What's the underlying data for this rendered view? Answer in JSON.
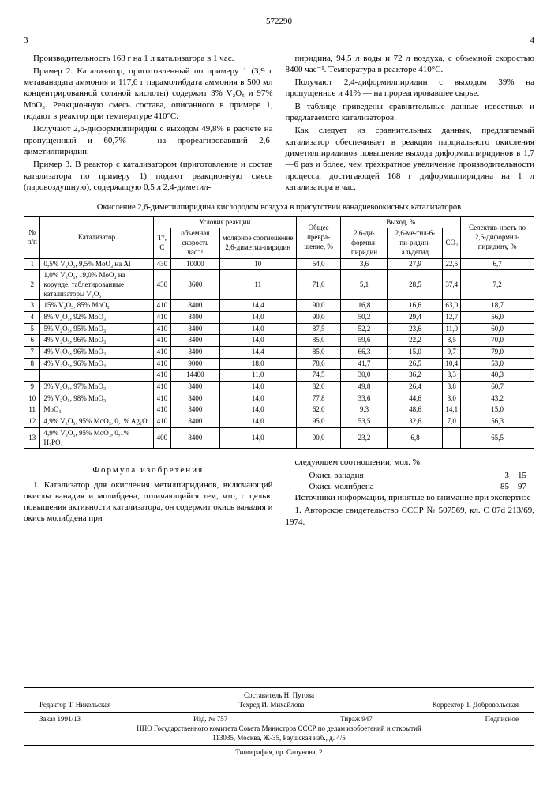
{
  "docnum": "572290",
  "pagenum_left": "3",
  "pagenum_right": "4",
  "left_col": {
    "p1": "Производительность 168 г на 1 л катализатора в 1 час.",
    "p2": "Пример 2. Катализатор, приготовленный по примеру 1 (3,9 г метаванадата аммония и 117,6 г парамолибдата аммония в 500 мл концентрированной соляной кислоты) содержит 3% V₂O₅ и 97% MoO₃. Реакционную смесь состава, описанного в примере 1, подают в реактор при температуре 410°C.",
    "p3": "Получают 2,6-диформилпиридин с выходом 49,8% в расчете на пропущенный и 60,7% — на прореагировавший 2,6-диметилпиридин.",
    "p4": "Пример 3. В реактор с катализатором (приготовление и состав катализатора по примеру 1) подают реакционную смесь (паровоздушную), содержащую 0,5 л 2,4-диметил-"
  },
  "right_col": {
    "p1": "пиридина, 94,5 л воды и 72 л воздуха, с объемной скоростью 8400 час⁻¹. Температура в реакторе 410°C.",
    "p2": "Получают 2,4-диформилпиридин с выходом 39% на пропущенное и 41% — на прореагировавшее сырье.",
    "p3": "В таблице приведены сравнительные данные известных и предлагаемого катализаторов.",
    "p4": "Как следует из сравнительных данных, предлагаемый катализатор обеспечивает в реакции парциального окисления диметилпиридинов повышение выхода диформилпиридинов в 1,7—6 раз и более, чем трехкратное увеличение производительности процесса, достигающей 168 г диформилпиридина на 1 л катализатора в час."
  },
  "table_title": "Окисление 2,6-диметилпиридина кислородом воздуха в присутствии ванадиевоокисных катализаторов",
  "headers": {
    "num": "№ п/п",
    "cat": "Катализатор",
    "cond": "Условия реакции",
    "temp": "T°, C",
    "speed": "объемная скорость час⁻¹",
    "ratio": "молярное соотношение 2,6-диметил-пиридин",
    "conv": "Общее превра-щение, %",
    "yield": "Выход, %",
    "y1": "2,6-ди-формил-пиридин",
    "y2": "2,6-ме-тил-6-пи-ридин-альдегид",
    "y3": "CO₂",
    "sel": "Селектив-ность по 2,6-диформил-пиридину, %"
  },
  "rows": [
    {
      "n": "1",
      "cat": "0,5% V₂O₅, 9,5% MoO₃ на Al",
      "t": "430",
      "s": "10000",
      "r": "10",
      "c": "54,0",
      "y1": "3,6",
      "y2": "27,9",
      "y3": "22,5",
      "sel": "6,7"
    },
    {
      "n": "2",
      "cat": "1,0% V₂O₅, 19,0% MoO₃ на корунде, таблетированные катализаторы V₂O₅",
      "t": "430",
      "s": "3600",
      "r": "11",
      "c": "71,0",
      "y1": "5,1",
      "y2": "28,5",
      "y3": "37,4",
      "sel": "7,2"
    },
    {
      "n": "3",
      "cat": "15% V₂O₅, 85% MoO₃",
      "t": "410",
      "s": "8400",
      "r": "14,4",
      "c": "90,0",
      "y1": "16,8",
      "y2": "16,6",
      "y3": "63,0",
      "sel": "18,7"
    },
    {
      "n": "4",
      "cat": "8% V₂O₅, 92% MoO₃",
      "t": "410",
      "s": "8400",
      "r": "14,0",
      "c": "90,0",
      "y1": "50,2",
      "y2": "29,4",
      "y3": "12,7",
      "sel": "56,0"
    },
    {
      "n": "5",
      "cat": "5% V₂O₅, 95% MoO₃",
      "t": "410",
      "s": "8400",
      "r": "14,0",
      "c": "87,5",
      "y1": "52,2",
      "y2": "23,6",
      "y3": "11,0",
      "sel": "60,0"
    },
    {
      "n": "6",
      "cat": "4% V₂O₅, 96% MoO₃",
      "t": "410",
      "s": "8400",
      "r": "14,0",
      "c": "85,0",
      "y1": "59,6",
      "y2": "22,2",
      "y3": "8,5",
      "sel": "70,0"
    },
    {
      "n": "7",
      "cat": "4% V₂O₅, 96% MoO₃",
      "t": "410",
      "s": "8400",
      "r": "14,4",
      "c": "85,0",
      "y1": "66,3",
      "y2": "15,0",
      "y3": "9,7",
      "sel": "79,0"
    },
    {
      "n": "8",
      "cat": "4% V₂O₅, 96% MoO₃",
      "t": "410",
      "s": "9000",
      "r": "18,0",
      "c": "78,6",
      "y1": "41,7",
      "y2": "26,5",
      "y3": "10,4",
      "sel": "53,0"
    },
    {
      "n": "",
      "cat": "",
      "t": "410",
      "s": "14400",
      "r": "11,0",
      "c": "74,5",
      "y1": "30,0",
      "y2": "36,2",
      "y3": "8,3",
      "sel": "40,3"
    },
    {
      "n": "9",
      "cat": "3% V₂O₅, 97% MoO₃",
      "t": "410",
      "s": "8400",
      "r": "14,0",
      "c": "82,0",
      "y1": "49,8",
      "y2": "26,4",
      "y3": "3,8",
      "sel": "60,7"
    },
    {
      "n": "10",
      "cat": "2% V₂O₅, 98% MoO₃",
      "t": "410",
      "s": "8400",
      "r": "14,0",
      "c": "77,8",
      "y1": "33,6",
      "y2": "44,6",
      "y3": "3,0",
      "sel": "43,2"
    },
    {
      "n": "11",
      "cat": "MoO₃",
      "t": "410",
      "s": "8400",
      "r": "14,0",
      "c": "62,0",
      "y1": "9,3",
      "y2": "48,6",
      "y3": "14,1",
      "sel": "15,0"
    },
    {
      "n": "12",
      "cat": "4,9% V₂O₅, 95% MoO₃, 0,1% Ag₂O",
      "t": "410",
      "s": "8400",
      "r": "14,0",
      "c": "95,0",
      "y1": "53,5",
      "y2": "32,6",
      "y3": "7,0",
      "sel": "56,3"
    },
    {
      "n": "13",
      "cat": "4,9% V₂O₅, 95% MoO₃, 0,1% H₃PO₄",
      "t": "400",
      "s": "8400",
      "r": "14,0",
      "c": "90,0",
      "y1": "23,2",
      "y2": "6,8",
      "y3": "",
      "sel": "65,5"
    }
  ],
  "formula_title": "Формула изобретения",
  "formula_left": "1. Катализатор для окисления метилпиридинов, включающий окислы ванадия и молибдена, отличающийся тем, что, с целью повышения активности катализатора, он содержит окись ванадия и окись молибдена при",
  "formula_right_intro": "следующем соотношении, мол. %:",
  "ratio1_label": "Окись ванадия",
  "ratio1_val": "3—15",
  "ratio2_label": "Окись молибдена",
  "ratio2_val": "85—97",
  "sources": "Источники информации, принятые во внимание при экспертизе",
  "source1": "1. Авторское свидетельство СССР № 507569, кл. C 07d 213/69, 1974.",
  "footer": {
    "compiled": "Составитель Н. Путова",
    "editor": "Редактор Т. Никольская",
    "tech": "Техред И. Михайлова",
    "corr": "Корректор Т. Добровольская",
    "order": "Заказ 1991/13",
    "izd": "Изд. № 757",
    "tiraz": "Тираж 947",
    "sub": "Подписное",
    "org": "НПО Государственного комитета Совета Министров СССР по делам изобретений и открытий",
    "addr": "113035, Москва, Ж-35, Раушская наб., д. 4/5",
    "print": "Типография, пр. Сапунова, 2"
  }
}
